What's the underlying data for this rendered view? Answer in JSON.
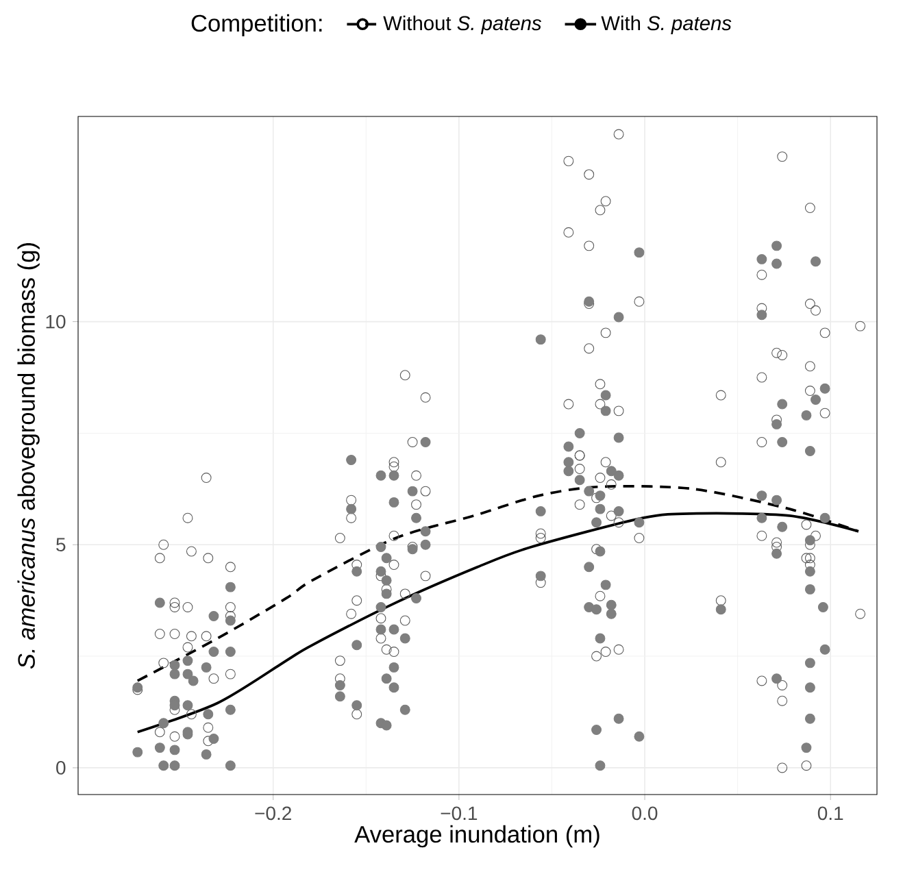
{
  "chart_data": {
    "type": "scatter",
    "xlabel": "Average inundation (m)",
    "ylabel": "*S. americanus* aboveground biomass (g)",
    "legend_title": "Competition:",
    "legend": "top",
    "grid": true,
    "xlim": [
      -0.305,
      0.125
    ],
    "ylim": [
      -0.6,
      14.6
    ],
    "xticks": [
      {
        "value": -0.2,
        "label": "−0.2"
      },
      {
        "value": -0.1,
        "label": "−0.1"
      },
      {
        "value": 0.0,
        "label": "0.0"
      },
      {
        "value": 0.1,
        "label": "0.1"
      }
    ],
    "yticks": [
      0,
      5,
      10
    ],
    "series": [
      {
        "marker": "circle",
        "color": "#595959",
        "x": [
          -0.236,
          -0.246,
          -0.259,
          -0.261,
          -0.244,
          -0.235,
          -0.223,
          -0.253,
          -0.253,
          -0.246,
          -0.223,
          -0.223,
          -0.261,
          -0.253,
          -0.244,
          -0.246,
          -0.236,
          -0.259,
          -0.223,
          -0.232,
          -0.273,
          -0.253,
          -0.244,
          -0.261,
          -0.253,
          -0.235,
          -0.235,
          -0.129,
          -0.118,
          -0.125,
          -0.135,
          -0.135,
          -0.123,
          -0.118,
          -0.123,
          -0.158,
          -0.158,
          -0.164,
          -0.135,
          -0.125,
          -0.155,
          -0.135,
          -0.118,
          -0.142,
          -0.139,
          -0.129,
          -0.155,
          -0.158,
          -0.142,
          -0.129,
          -0.142,
          -0.139,
          -0.135,
          -0.164,
          -0.164,
          -0.155,
          -0.014,
          -0.041,
          -0.03,
          -0.021,
          -0.024,
          -0.041,
          -0.03,
          -0.003,
          -0.03,
          -0.021,
          -0.03,
          -0.024,
          -0.041,
          -0.024,
          -0.014,
          -0.035,
          -0.035,
          -0.035,
          -0.021,
          -0.024,
          -0.018,
          -0.026,
          -0.035,
          -0.018,
          -0.014,
          -0.056,
          -0.056,
          -0.003,
          -0.026,
          -0.056,
          -0.024,
          -0.026,
          -0.021,
          -0.014,
          0.074,
          0.089,
          0.063,
          0.063,
          0.089,
          0.092,
          0.116,
          0.097,
          0.071,
          0.074,
          0.089,
          0.063,
          0.041,
          0.089,
          0.097,
          0.071,
          0.063,
          0.041,
          0.063,
          0.071,
          0.071,
          0.087,
          0.092,
          0.089,
          0.089,
          0.089,
          0.041,
          0.087,
          0.116,
          0.063,
          0.074,
          0.074,
          0.074,
          0.087
        ],
        "values": [
          6.5,
          5.6,
          5.0,
          4.7,
          4.85,
          4.7,
          4.5,
          3.7,
          3.6,
          3.6,
          3.6,
          3.4,
          3.0,
          3.0,
          2.95,
          2.7,
          2.95,
          2.35,
          2.1,
          2.0,
          1.75,
          1.3,
          1.2,
          0.8,
          0.7,
          0.9,
          0.6,
          8.8,
          8.3,
          7.3,
          6.85,
          6.75,
          6.55,
          6.2,
          5.9,
          6.0,
          5.6,
          5.15,
          5.2,
          4.95,
          4.55,
          4.55,
          4.3,
          4.3,
          4.0,
          3.9,
          3.75,
          3.45,
          3.35,
          3.3,
          2.9,
          2.65,
          2.6,
          2.4,
          2.0,
          1.2,
          14.2,
          13.6,
          13.3,
          12.7,
          12.5,
          12.0,
          11.7,
          10.45,
          10.4,
          9.75,
          9.4,
          8.6,
          8.15,
          8.15,
          8.0,
          7.0,
          7.0,
          6.7,
          6.85,
          6.5,
          6.35,
          6.05,
          5.9,
          5.65,
          5.5,
          5.25,
          5.15,
          5.15,
          4.9,
          4.15,
          3.85,
          2.5,
          2.6,
          2.65,
          13.7,
          12.55,
          11.05,
          10.3,
          10.4,
          10.25,
          9.9,
          9.75,
          9.3,
          9.25,
          9.0,
          8.75,
          8.35,
          8.45,
          7.95,
          7.8,
          7.3,
          6.85,
          5.2,
          5.05,
          4.95,
          5.45,
          5.2,
          5.0,
          4.7,
          4.55,
          3.75,
          4.7,
          3.45,
          1.95,
          1.85,
          1.5,
          0.0,
          0.05
        ]
      },
      {
        "marker": "circle",
        "color": "#7f7f7f",
        "x": [
          -0.223,
          -0.261,
          -0.232,
          -0.223,
          -0.232,
          -0.223,
          -0.253,
          -0.246,
          -0.253,
          -0.246,
          -0.243,
          -0.236,
          -0.273,
          -0.253,
          -0.253,
          -0.246,
          -0.235,
          -0.223,
          -0.259,
          -0.246,
          -0.246,
          -0.261,
          -0.253,
          -0.273,
          -0.232,
          -0.236,
          -0.259,
          -0.253,
          -0.223,
          -0.118,
          -0.158,
          -0.142,
          -0.135,
          -0.125,
          -0.135,
          -0.158,
          -0.123,
          -0.118,
          -0.118,
          -0.125,
          -0.142,
          -0.139,
          -0.155,
          -0.142,
          -0.139,
          -0.139,
          -0.123,
          -0.142,
          -0.155,
          -0.142,
          -0.135,
          -0.129,
          -0.135,
          -0.139,
          -0.135,
          -0.164,
          -0.164,
          -0.155,
          -0.129,
          -0.142,
          -0.139,
          -0.003,
          -0.03,
          -0.014,
          -0.056,
          -0.021,
          -0.021,
          -0.035,
          -0.014,
          -0.041,
          -0.041,
          -0.041,
          -0.035,
          -0.03,
          -0.024,
          -0.024,
          -0.014,
          -0.014,
          -0.018,
          -0.056,
          -0.026,
          -0.003,
          -0.024,
          -0.03,
          -0.056,
          -0.021,
          -0.03,
          -0.026,
          -0.018,
          -0.018,
          -0.024,
          -0.014,
          -0.026,
          -0.003,
          -0.024,
          0.071,
          0.063,
          0.071,
          0.092,
          0.063,
          0.097,
          0.092,
          0.074,
          0.087,
          0.071,
          0.074,
          0.089,
          0.063,
          0.071,
          0.063,
          0.074,
          0.097,
          0.089,
          0.071,
          0.089,
          0.089,
          0.096,
          0.041,
          0.097,
          0.089,
          0.071,
          0.089,
          0.089,
          0.087
        ],
        "values": [
          4.05,
          3.7,
          3.4,
          3.3,
          2.6,
          2.6,
          2.3,
          2.4,
          2.1,
          2.1,
          1.95,
          2.25,
          1.8,
          1.5,
          1.4,
          1.4,
          1.2,
          1.3,
          1.0,
          0.8,
          0.75,
          0.45,
          0.4,
          0.35,
          0.65,
          0.3,
          0.05,
          0.05,
          0.05,
          7.3,
          6.9,
          6.55,
          6.55,
          6.2,
          5.95,
          5.8,
          5.6,
          5.3,
          5.0,
          4.9,
          4.95,
          4.7,
          4.4,
          4.4,
          4.2,
          3.9,
          3.8,
          3.6,
          2.75,
          3.1,
          3.1,
          2.9,
          2.25,
          2.0,
          1.8,
          1.85,
          1.6,
          1.4,
          1.3,
          1.0,
          0.95,
          11.55,
          10.45,
          10.1,
          9.6,
          8.35,
          8.0,
          7.5,
          7.4,
          7.2,
          6.85,
          6.65,
          6.45,
          6.2,
          6.1,
          5.8,
          5.75,
          6.55,
          6.65,
          5.75,
          5.5,
          5.5,
          4.85,
          4.5,
          4.3,
          4.1,
          3.6,
          3.55,
          3.65,
          3.45,
          2.9,
          1.1,
          0.85,
          0.7,
          0.05,
          11.7,
          11.4,
          11.3,
          11.35,
          10.15,
          8.5,
          8.25,
          8.15,
          7.9,
          7.7,
          7.3,
          7.1,
          6.1,
          6.0,
          5.6,
          5.4,
          5.6,
          5.1,
          4.8,
          4.4,
          4.0,
          3.6,
          3.55,
          2.65,
          2.35,
          2.0,
          1.8,
          1.1,
          0.45
        ]
      },
      {
        "type": "line",
        "name": "Without *S. patens*",
        "line_style": "dashed",
        "color": "#000000",
        "x": [
          -0.273,
          -0.23,
          -0.193,
          -0.179,
          -0.134,
          -0.092,
          -0.057,
          -0.024,
          0.026,
          0.078,
          0.115
        ],
        "values": [
          1.95,
          2.9,
          3.8,
          4.2,
          5.15,
          5.65,
          6.1,
          6.3,
          6.25,
          5.8,
          5.3
        ]
      },
      {
        "type": "line",
        "name": "With *S. patens*",
        "line_style": "solid",
        "color": "#000000",
        "x": [
          -0.273,
          -0.23,
          -0.193,
          -0.179,
          -0.134,
          -0.09,
          -0.061,
          -0.001,
          0.028,
          0.078,
          0.115
        ],
        "values": [
          0.8,
          1.45,
          2.4,
          2.75,
          3.7,
          4.5,
          4.95,
          5.6,
          5.7,
          5.65,
          5.3
        ]
      }
    ]
  }
}
